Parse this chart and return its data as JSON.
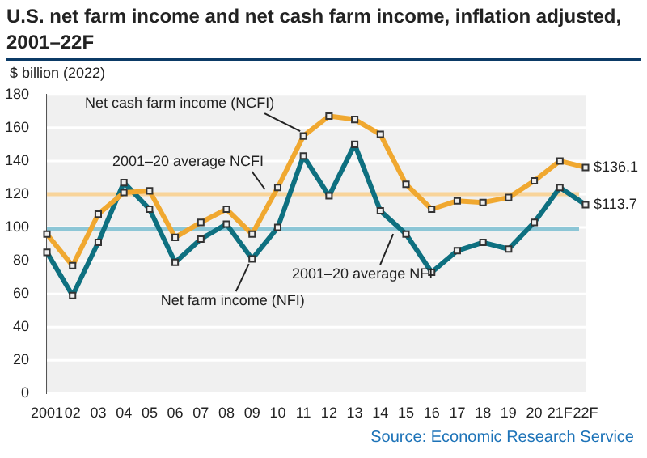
{
  "chart_data": {
    "type": "line",
    "title": "U.S. net farm income and net cash farm income, inflation adjusted, 2001–22F",
    "ylabel": "$ billion (2022)",
    "categories": [
      "2001",
      "02",
      "03",
      "04",
      "05",
      "06",
      "07",
      "08",
      "09",
      "10",
      "11",
      "12",
      "13",
      "14",
      "15",
      "16",
      "17",
      "18",
      "19",
      "20",
      "21F",
      "22F"
    ],
    "series": [
      {
        "name": "Net cash farm income (NCFI)",
        "color": "#f0a830",
        "values": [
          96,
          77,
          108,
          121,
          122,
          94,
          103,
          111,
          96,
          124,
          155,
          167,
          165,
          156,
          126,
          111,
          116,
          115,
          118,
          128,
          140,
          136.1
        ],
        "value_labels": [
          null,
          null,
          null,
          null,
          null,
          null,
          null,
          null,
          null,
          null,
          null,
          null,
          null,
          null,
          null,
          null,
          null,
          null,
          null,
          null,
          null,
          "$136.1"
        ]
      },
      {
        "name": "Net farm income (NFI)",
        "color": "#0e7080",
        "values": [
          85,
          59,
          91,
          127,
          111,
          79,
          93,
          102,
          81,
          100,
          143,
          119,
          150,
          110,
          96,
          73,
          86,
          91,
          87,
          103,
          124,
          113.7
        ],
        "value_labels": [
          null,
          null,
          null,
          null,
          null,
          null,
          null,
          null,
          null,
          null,
          null,
          null,
          null,
          null,
          null,
          null,
          null,
          null,
          null,
          null,
          null,
          "$113.7"
        ]
      }
    ],
    "ylim": [
      0,
      180
    ],
    "yticks": [
      0,
      20,
      40,
      60,
      80,
      100,
      120,
      140,
      160,
      180
    ],
    "ref_lines": [
      {
        "axis": "y",
        "value": 120,
        "label": "2001–20 average NCFI",
        "color": "#f8d49a"
      },
      {
        "axis": "y",
        "value": 99,
        "label": "2001–20 average NFI",
        "color": "#8cc6d6"
      }
    ],
    "grid": "y",
    "legend": false,
    "marker": "square",
    "line_style": "solid",
    "annotations": [
      "Source: Economic Research Service"
    ]
  }
}
